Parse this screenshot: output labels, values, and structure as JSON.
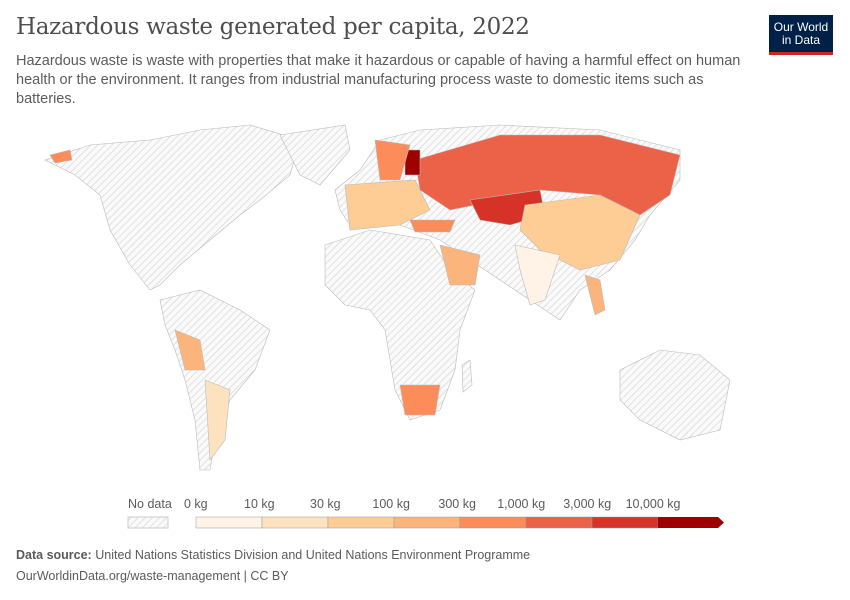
{
  "title": "Hazardous waste generated per capita, 2022",
  "subtitle": "Hazardous waste is waste with properties that make it hazardous or capable of having a harmful effect on human health or the environment. It ranges from industrial manufacturing process waste to domestic items such as batteries.",
  "logo": "Our World in Data",
  "legend": {
    "no_data": "No data",
    "ticks": [
      "0 kg",
      "10 kg",
      "30 kg",
      "100 kg",
      "300 kg",
      "1,000 kg",
      "3,000 kg",
      "10,000 kg"
    ],
    "colors": [
      "#fef3e6",
      "#fde2bf",
      "#fdcd95",
      "#fbb47b",
      "#fc8c59",
      "#eb6249",
      "#d63227",
      "#9e0000"
    ],
    "no_data_color": "#e8e8e8"
  },
  "map": {
    "countries": [
      {
        "name": "Russia",
        "bin": 5
      },
      {
        "name": "Kazakhstan",
        "bin": 6
      },
      {
        "name": "China",
        "bin": 2
      },
      {
        "name": "India",
        "bin": 0
      },
      {
        "name": "Finland",
        "bin": 7
      },
      {
        "name": "Scandinavia",
        "bin": 4
      },
      {
        "name": "Europe",
        "bin": 2
      },
      {
        "name": "Turkey",
        "bin": 4
      },
      {
        "name": "Saudi Arabia",
        "bin": 3
      },
      {
        "name": "South Africa",
        "bin": 4
      },
      {
        "name": "Peru",
        "bin": 3
      },
      {
        "name": "Argentina",
        "bin": 1
      },
      {
        "name": "Iceland",
        "bin": 4
      },
      {
        "name": "Southeast Asia",
        "bin": 3
      }
    ]
  },
  "footer": {
    "source_label": "Data source:",
    "source": "United Nations Statistics Division and United Nations Environment Programme",
    "link": "OurWorldinData.org/waste-management | CC BY"
  }
}
